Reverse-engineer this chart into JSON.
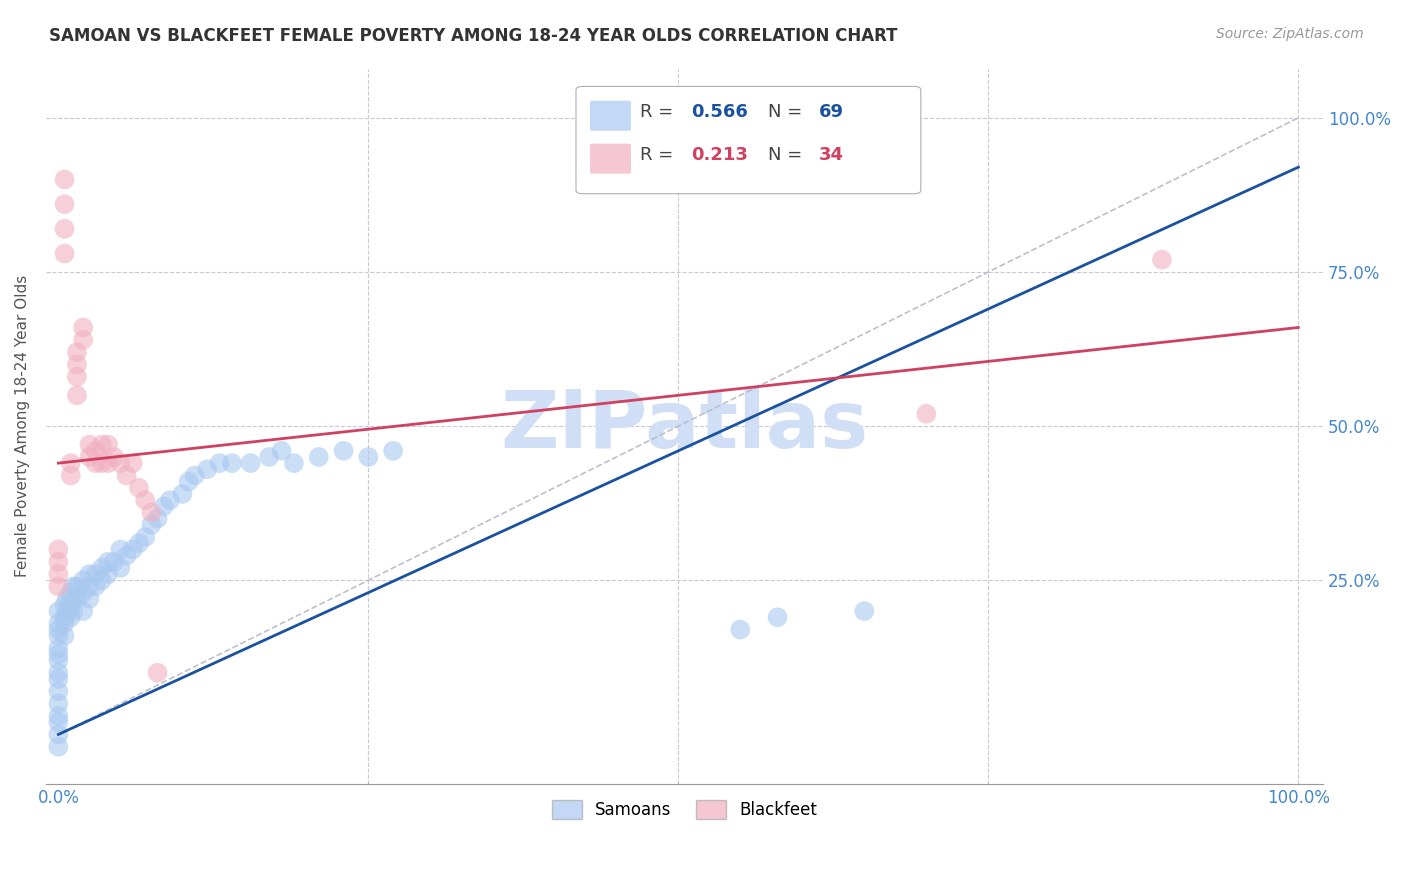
{
  "title": "SAMOAN VS BLACKFEET FEMALE POVERTY AMONG 18-24 YEAR OLDS CORRELATION CHART",
  "source": "Source: ZipAtlas.com",
  "ylabel": "Female Poverty Among 18-24 Year Olds",
  "xlim": [
    -0.01,
    1.02
  ],
  "ylim": [
    -0.08,
    1.08
  ],
  "r_samoan": 0.566,
  "n_samoan": 69,
  "r_blackfeet": 0.213,
  "n_blackfeet": 34,
  "samoan_color": "#a8c8f0",
  "blackfeet_color": "#f0b0c0",
  "samoan_line_color": "#1a52a0",
  "blackfeet_line_color": "#d04060",
  "diagonal_color": "#b8b8c8",
  "watermark_color": "#d0dff5",
  "background_color": "#ffffff",
  "tick_color": "#4488cc",
  "samoan_line_x": [
    0.0,
    1.0
  ],
  "samoan_line_y": [
    0.0,
    0.92
  ],
  "blackfeet_line_x": [
    0.0,
    1.0
  ],
  "blackfeet_line_y": [
    0.44,
    0.66
  ],
  "samoan_points": [
    [
      0.0,
      -0.02
    ],
    [
      0.0,
      0.0
    ],
    [
      0.0,
      0.02
    ],
    [
      0.0,
      0.03
    ],
    [
      0.0,
      0.05
    ],
    [
      0.0,
      0.07
    ],
    [
      0.0,
      0.09
    ],
    [
      0.0,
      0.1
    ],
    [
      0.0,
      0.12
    ],
    [
      0.0,
      0.13
    ],
    [
      0.0,
      0.14
    ],
    [
      0.0,
      0.16
    ],
    [
      0.0,
      0.17
    ],
    [
      0.0,
      0.18
    ],
    [
      0.0,
      0.2
    ],
    [
      0.005,
      0.16
    ],
    [
      0.005,
      0.18
    ],
    [
      0.005,
      0.19
    ],
    [
      0.005,
      0.21
    ],
    [
      0.007,
      0.2
    ],
    [
      0.007,
      0.22
    ],
    [
      0.01,
      0.19
    ],
    [
      0.01,
      0.21
    ],
    [
      0.01,
      0.23
    ],
    [
      0.012,
      0.2
    ],
    [
      0.012,
      0.22
    ],
    [
      0.012,
      0.24
    ],
    [
      0.015,
      0.22
    ],
    [
      0.015,
      0.24
    ],
    [
      0.02,
      0.2
    ],
    [
      0.02,
      0.23
    ],
    [
      0.02,
      0.25
    ],
    [
      0.025,
      0.22
    ],
    [
      0.025,
      0.24
    ],
    [
      0.025,
      0.26
    ],
    [
      0.03,
      0.24
    ],
    [
      0.03,
      0.26
    ],
    [
      0.035,
      0.25
    ],
    [
      0.035,
      0.27
    ],
    [
      0.04,
      0.26
    ],
    [
      0.04,
      0.28
    ],
    [
      0.045,
      0.28
    ],
    [
      0.05,
      0.27
    ],
    [
      0.05,
      0.3
    ],
    [
      0.055,
      0.29
    ],
    [
      0.06,
      0.3
    ],
    [
      0.065,
      0.31
    ],
    [
      0.07,
      0.32
    ],
    [
      0.075,
      0.34
    ],
    [
      0.08,
      0.35
    ],
    [
      0.085,
      0.37
    ],
    [
      0.09,
      0.38
    ],
    [
      0.1,
      0.39
    ],
    [
      0.105,
      0.41
    ],
    [
      0.11,
      0.42
    ],
    [
      0.12,
      0.43
    ],
    [
      0.13,
      0.44
    ],
    [
      0.14,
      0.44
    ],
    [
      0.155,
      0.44
    ],
    [
      0.17,
      0.45
    ],
    [
      0.18,
      0.46
    ],
    [
      0.19,
      0.44
    ],
    [
      0.21,
      0.45
    ],
    [
      0.23,
      0.46
    ],
    [
      0.25,
      0.45
    ],
    [
      0.27,
      0.46
    ],
    [
      0.55,
      0.17
    ],
    [
      0.58,
      0.19
    ],
    [
      0.65,
      0.2
    ]
  ],
  "blackfeet_points": [
    [
      0.0,
      0.24
    ],
    [
      0.0,
      0.26
    ],
    [
      0.0,
      0.28
    ],
    [
      0.0,
      0.3
    ],
    [
      0.005,
      0.78
    ],
    [
      0.005,
      0.82
    ],
    [
      0.005,
      0.86
    ],
    [
      0.005,
      0.9
    ],
    [
      0.01,
      0.42
    ],
    [
      0.01,
      0.44
    ],
    [
      0.015,
      0.55
    ],
    [
      0.015,
      0.58
    ],
    [
      0.015,
      0.6
    ],
    [
      0.015,
      0.62
    ],
    [
      0.02,
      0.64
    ],
    [
      0.02,
      0.66
    ],
    [
      0.025,
      0.45
    ],
    [
      0.025,
      0.47
    ],
    [
      0.03,
      0.44
    ],
    [
      0.03,
      0.46
    ],
    [
      0.035,
      0.44
    ],
    [
      0.035,
      0.47
    ],
    [
      0.04,
      0.44
    ],
    [
      0.04,
      0.47
    ],
    [
      0.045,
      0.45
    ],
    [
      0.05,
      0.44
    ],
    [
      0.055,
      0.42
    ],
    [
      0.06,
      0.44
    ],
    [
      0.065,
      0.4
    ],
    [
      0.07,
      0.38
    ],
    [
      0.075,
      0.36
    ],
    [
      0.08,
      0.1
    ],
    [
      0.7,
      0.52
    ],
    [
      0.89,
      0.77
    ]
  ]
}
